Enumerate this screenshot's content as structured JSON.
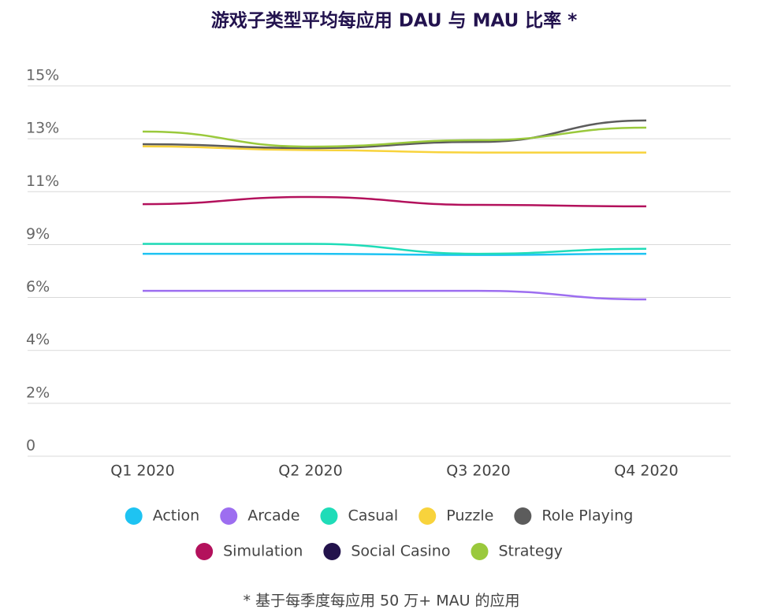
{
  "chart_data": {
    "type": "line",
    "title": "游戏子类型平均每应用 DAU 与 MAU 比率 *",
    "footnote": "* 基于每季度每应用 50 万+ MAU 的应用",
    "categories": [
      "Q1 2020",
      "Q2 2020",
      "Q3 2020",
      "Q4 2020"
    ],
    "ylim": [
      0,
      15
    ],
    "yticks": [
      0,
      {
        "value": 2.143,
        "label": "2%"
      },
      {
        "value": 4.286,
        "label": "4%"
      },
      {
        "value": 6.429,
        "label": "6%"
      },
      {
        "value": 8.571,
        "label": "9%"
      },
      {
        "value": 10.714,
        "label": "11%"
      },
      {
        "value": 12.857,
        "label": "13%"
      },
      {
        "value": 15,
        "label": "15%"
      }
    ],
    "grid": true,
    "series": [
      {
        "name": "Action",
        "color": "#1ec3f2",
        "values": [
          8.2,
          8.2,
          8.15,
          8.2
        ]
      },
      {
        "name": "Arcade",
        "color": "#9d6ef0",
        "values": [
          6.7,
          6.7,
          6.7,
          6.35
        ]
      },
      {
        "name": "Casual",
        "color": "#1fdcb8",
        "values": [
          8.6,
          8.6,
          8.2,
          8.4
        ]
      },
      {
        "name": "Puzzle",
        "color": "#f8d33c",
        "values": [
          12.55,
          12.4,
          12.3,
          12.3
        ]
      },
      {
        "name": "Role Playing",
        "color": "#5c5c5c",
        "values": [
          12.64,
          12.48,
          12.73,
          13.6
        ]
      },
      {
        "name": "Simulation",
        "color": "#b3115c",
        "values": [
          10.21,
          10.5,
          10.18,
          10.12
        ]
      },
      {
        "name": "Social Casino",
        "color": "#23134c",
        "values": [
          null,
          null,
          null,
          null
        ]
      },
      {
        "name": "Strategy",
        "color": "#9ac93c",
        "values": [
          13.15,
          12.54,
          12.8,
          13.31
        ]
      }
    ]
  }
}
